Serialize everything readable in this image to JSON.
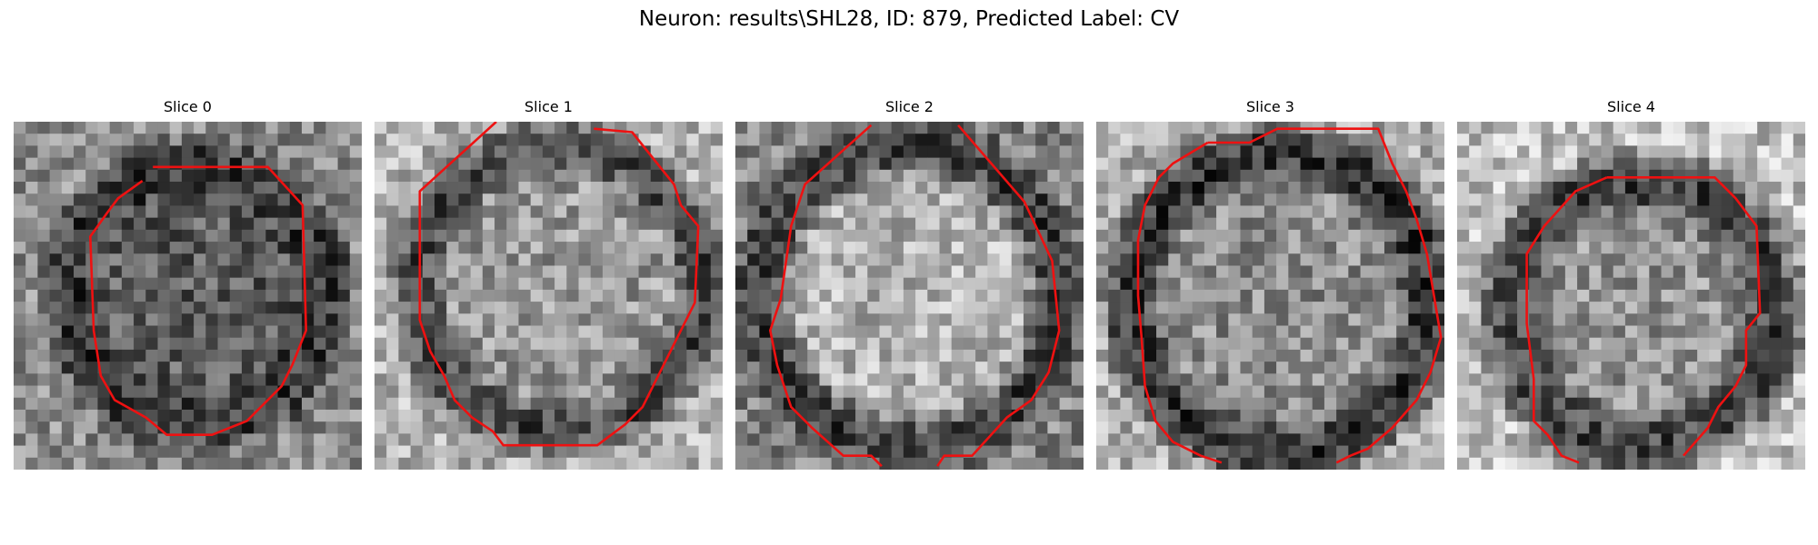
{
  "title": "Neuron: results\\SHL28, ID: 879, Predicted Label: CV",
  "panels": [
    {
      "label": "Slice 0",
      "contour": [
        [
          0.4,
          0.13
        ],
        [
          0.73,
          0.13
        ],
        [
          0.83,
          0.24
        ],
        [
          0.84,
          0.6
        ],
        [
          0.8,
          0.7
        ],
        [
          0.77,
          0.76
        ],
        [
          0.67,
          0.86
        ],
        [
          0.57,
          0.9
        ],
        [
          0.44,
          0.9
        ],
        [
          0.38,
          0.85
        ],
        [
          0.29,
          0.8
        ],
        [
          0.25,
          0.73
        ],
        [
          0.23,
          0.6
        ],
        [
          0.22,
          0.33
        ],
        [
          0.27,
          0.26
        ],
        [
          0.3,
          0.22
        ],
        [
          0.37,
          0.17
        ]
      ]
    },
    {
      "label": "Slice 1",
      "contour": [
        [
          0.35,
          0.0
        ],
        [
          0.13,
          0.2
        ],
        [
          0.13,
          0.57
        ],
        [
          0.16,
          0.66
        ],
        [
          0.2,
          0.73
        ],
        [
          0.23,
          0.8
        ],
        [
          0.28,
          0.85
        ],
        [
          0.34,
          0.89
        ],
        [
          0.37,
          0.93
        ],
        [
          0.64,
          0.93
        ],
        [
          0.72,
          0.87
        ],
        [
          0.77,
          0.82
        ],
        [
          0.8,
          0.76
        ],
        [
          0.86,
          0.64
        ],
        [
          0.92,
          0.52
        ],
        [
          0.93,
          0.3
        ],
        [
          0.88,
          0.24
        ],
        [
          0.86,
          0.18
        ],
        [
          0.74,
          0.03
        ],
        [
          0.63,
          0.02
        ]
      ]
    },
    {
      "label": "Slice 2",
      "contour": [
        [
          0.39,
          0.01
        ],
        [
          0.2,
          0.18
        ],
        [
          0.16,
          0.3
        ],
        [
          0.13,
          0.51
        ],
        [
          0.1,
          0.6
        ],
        [
          0.12,
          0.7
        ],
        [
          0.16,
          0.82
        ],
        [
          0.22,
          0.88
        ],
        [
          0.31,
          0.96
        ],
        [
          0.39,
          0.96
        ],
        [
          0.42,
          0.99
        ]
      ]
    },
    {
      "label": "Slice 2",
      "contour": [
        [
          0.64,
          0.01
        ],
        [
          0.83,
          0.23
        ],
        [
          0.91,
          0.4
        ],
        [
          0.93,
          0.6
        ],
        [
          0.9,
          0.72
        ],
        [
          0.85,
          0.8
        ],
        [
          0.78,
          0.85
        ],
        [
          0.68,
          0.96
        ],
        [
          0.6,
          0.96
        ],
        [
          0.58,
          0.99
        ]
      ]
    },
    {
      "label": "Slice 3",
      "contour": [
        [
          0.32,
          0.06
        ],
        [
          0.44,
          0.06
        ],
        [
          0.52,
          0.02
        ],
        [
          0.81,
          0.02
        ],
        [
          0.85,
          0.12
        ],
        [
          0.89,
          0.2
        ],
        [
          0.92,
          0.28
        ],
        [
          0.95,
          0.38
        ],
        [
          0.97,
          0.5
        ],
        [
          0.99,
          0.62
        ],
        [
          0.96,
          0.72
        ],
        [
          0.92,
          0.8
        ],
        [
          0.85,
          0.88
        ],
        [
          0.78,
          0.94
        ],
        [
          0.73,
          0.96
        ],
        [
          0.69,
          0.98
        ]
      ]
    },
    {
      "label": "Slice 3",
      "contour": [
        [
          0.32,
          0.06
        ],
        [
          0.22,
          0.12
        ],
        [
          0.18,
          0.16
        ],
        [
          0.14,
          0.24
        ],
        [
          0.12,
          0.34
        ],
        [
          0.12,
          0.5
        ],
        [
          0.13,
          0.62
        ],
        [
          0.14,
          0.76
        ],
        [
          0.17,
          0.86
        ],
        [
          0.22,
          0.92
        ],
        [
          0.3,
          0.96
        ],
        [
          0.36,
          0.98
        ]
      ]
    },
    {
      "label": "Slice 4",
      "contour": [
        [
          0.43,
          0.16
        ],
        [
          0.57,
          0.16
        ],
        [
          0.64,
          0.16
        ],
        [
          0.74,
          0.16
        ],
        [
          0.8,
          0.22
        ],
        [
          0.86,
          0.3
        ],
        [
          0.87,
          0.55
        ],
        [
          0.83,
          0.6
        ],
        [
          0.83,
          0.7
        ],
        [
          0.8,
          0.76
        ],
        [
          0.75,
          0.82
        ],
        [
          0.72,
          0.88
        ],
        [
          0.65,
          0.96
        ]
      ]
    },
    {
      "label": "Slice 4",
      "contour": [
        [
          0.43,
          0.16
        ],
        [
          0.34,
          0.2
        ],
        [
          0.25,
          0.3
        ],
        [
          0.2,
          0.38
        ],
        [
          0.2,
          0.58
        ],
        [
          0.22,
          0.74
        ],
        [
          0.22,
          0.86
        ],
        [
          0.26,
          0.9
        ],
        [
          0.3,
          0.96
        ],
        [
          0.35,
          0.98
        ]
      ]
    }
  ],
  "colors": {
    "contour": "#ee1111"
  }
}
